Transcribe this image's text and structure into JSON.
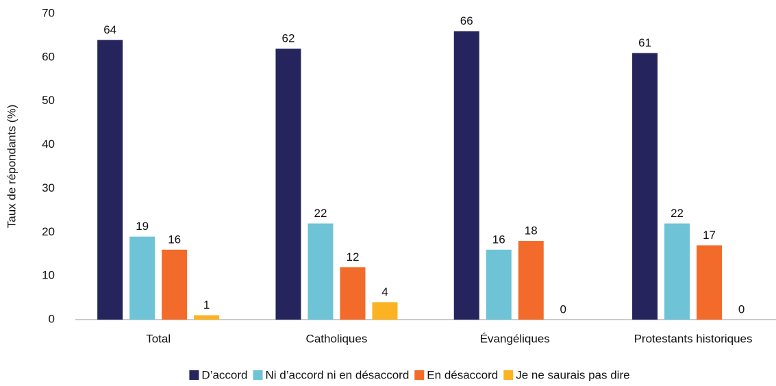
{
  "chart_data": {
    "type": "bar",
    "categories": [
      "Total",
      "Catholiques",
      "Évangéliques",
      "Protestants historiques"
    ],
    "series": [
      {
        "name": "D’accord",
        "color": "#25245c",
        "values": [
          64,
          62,
          66,
          61
        ]
      },
      {
        "name": "Ni d’accord ni en désaccord",
        "color": "#6ec3d6",
        "values": [
          19,
          22,
          16,
          22
        ]
      },
      {
        "name": "En désaccord",
        "color": "#f26b2a",
        "values": [
          16,
          12,
          18,
          17
        ]
      },
      {
        "name": "Je ne saurais pas dire",
        "color": "#fbb323",
        "values": [
          1,
          4,
          0,
          0
        ]
      }
    ],
    "y_label": "Taux de répondants (%)",
    "ylim": [
      0,
      70
    ],
    "yticks": [
      0,
      10,
      20,
      30,
      40,
      50,
      60,
      70
    ],
    "grid": false,
    "legend": "bottom"
  }
}
